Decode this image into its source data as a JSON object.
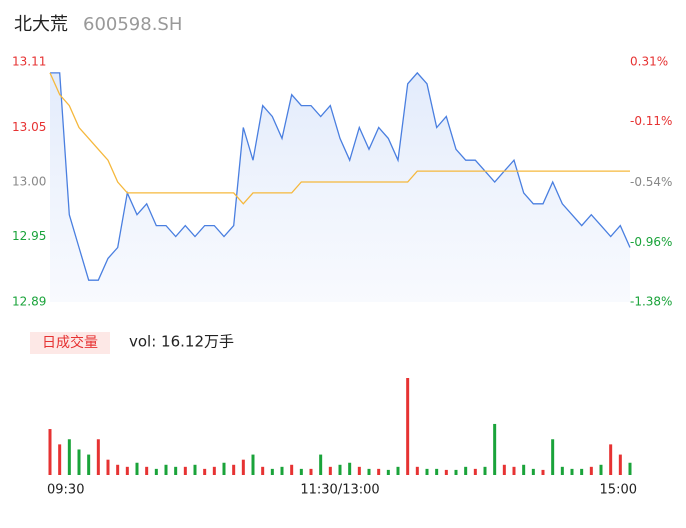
{
  "chart_data": {
    "type": "intraday",
    "title": "北大荒",
    "subtitle": "600598.SH",
    "volume_label": "日成交量",
    "volume_total": "vol: 16.12万手",
    "x": [
      0,
      4,
      8,
      12,
      16,
      20,
      24,
      28,
      32,
      36,
      40,
      44,
      48,
      52,
      56,
      60,
      64,
      68,
      72,
      76,
      80,
      84,
      88,
      92,
      96,
      100,
      104,
      108,
      112,
      116,
      120,
      124,
      128,
      132,
      136,
      140,
      144,
      148,
      152,
      156,
      160,
      164,
      168,
      172,
      176,
      180,
      184,
      188,
      192,
      196,
      200,
      204,
      208,
      212,
      216,
      220,
      224,
      228,
      232,
      236,
      240
    ],
    "xlim": [
      0,
      240
    ],
    "xticks": [
      {
        "value": 0,
        "label": "09:30"
      },
      {
        "value": 120,
        "label": "11:30/13:00"
      },
      {
        "value": 240,
        "label": "15:00"
      }
    ],
    "ylim": [
      12.89,
      13.11
    ],
    "yticks": [
      13.11,
      13.05,
      {
        "value": 13,
        "label": "13.00"
      },
      12.95,
      12.89
    ],
    "ytick_colors": [
      "#e63232",
      "#e63232",
      "#888888",
      "#1aa33a",
      "#1aa33a"
    ],
    "y2lim": [
      -1.38,
      0.31
    ],
    "y2ticks": [
      {
        "value": 0.31,
        "label": "0.31%"
      },
      {
        "value": -0.11,
        "label": "-0.11%"
      },
      {
        "value": -0.54,
        "label": "-0.54%"
      },
      {
        "value": -0.96,
        "label": "-0.96%"
      },
      {
        "value": -1.38,
        "label": "-1.38%"
      }
    ],
    "series": [
      {
        "name": "price",
        "color": "#4a7fe0",
        "values": [
          13.1,
          13.1,
          12.97,
          12.94,
          12.91,
          12.91,
          12.93,
          12.94,
          12.99,
          12.97,
          12.98,
          12.96,
          12.96,
          12.95,
          12.96,
          12.95,
          12.96,
          12.96,
          12.95,
          12.96,
          13.05,
          13.02,
          13.07,
          13.06,
          13.04,
          13.08,
          13.07,
          13.07,
          13.06,
          13.07,
          13.04,
          13.02,
          13.05,
          13.03,
          13.05,
          13.04,
          13.02,
          13.09,
          13.1,
          13.09,
          13.05,
          13.06,
          13.03,
          13.02,
          13.02,
          13.01,
          13.0,
          13.01,
          13.02,
          12.99,
          12.98,
          12.98,
          13.0,
          12.98,
          12.97,
          12.96,
          12.97,
          12.96,
          12.95,
          12.96,
          12.94
        ]
      },
      {
        "name": "average",
        "color": "#f5b83d",
        "values": [
          13.1,
          13.08,
          13.07,
          13.05,
          13.04,
          13.03,
          13.02,
          13.0,
          12.99,
          12.99,
          12.99,
          12.99,
          12.99,
          12.99,
          12.99,
          12.99,
          12.99,
          12.99,
          12.99,
          12.99,
          12.98,
          12.99,
          12.99,
          12.99,
          12.99,
          12.99,
          13.0,
          13.0,
          13.0,
          13.0,
          13.0,
          13.0,
          13.0,
          13.0,
          13.0,
          13.0,
          13.0,
          13.0,
          13.01,
          13.01,
          13.01,
          13.01,
          13.01,
          13.01,
          13.01,
          13.01,
          13.01,
          13.01,
          13.01,
          13.01,
          13.01,
          13.01,
          13.01,
          13.01,
          13.01,
          13.01,
          13.01,
          13.01,
          13.01,
          13.01,
          13.01
        ]
      }
    ],
    "volume": {
      "values": [
        45,
        30,
        35,
        25,
        20,
        35,
        15,
        10,
        8,
        12,
        8,
        6,
        10,
        8,
        8,
        10,
        6,
        8,
        12,
        10,
        15,
        20,
        8,
        6,
        8,
        10,
        6,
        6,
        20,
        8,
        10,
        12,
        8,
        6,
        6,
        5,
        8,
        95,
        8,
        6,
        6,
        5,
        5,
        8,
        6,
        8,
        50,
        10,
        8,
        10,
        6,
        5,
        35,
        8,
        6,
        6,
        8,
        10,
        30,
        20,
        12
      ],
      "colors": [
        "#e63232",
        "#e63232",
        "#1aa33a",
        "#1aa33a",
        "#1aa33a",
        "#e63232",
        "#e63232",
        "#e63232",
        "#e63232",
        "#1aa33a",
        "#e63232",
        "#1aa33a",
        "#1aa33a",
        "#1aa33a",
        "#e63232",
        "#1aa33a",
        "#e63232",
        "#e63232",
        "#1aa33a",
        "#e63232",
        "#e63232",
        "#1aa33a",
        "#e63232",
        "#1aa33a",
        "#1aa33a",
        "#e63232",
        "#1aa33a",
        "#e63232",
        "#1aa33a",
        "#e63232",
        "#1aa33a",
        "#1aa33a",
        "#e63232",
        "#1aa33a",
        "#e63232",
        "#1aa33a",
        "#1aa33a",
        "#e63232",
        "#e63232",
        "#1aa33a",
        "#1aa33a",
        "#e63232",
        "#1aa33a",
        "#1aa33a",
        "#e63232",
        "#1aa33a",
        "#1aa33a",
        "#e63232",
        "#e63232",
        "#1aa33a",
        "#1aa33a",
        "#e63232",
        "#1aa33a",
        "#1aa33a",
        "#1aa33a",
        "#1aa33a",
        "#e63232",
        "#1aa33a",
        "#e63232",
        "#e63232",
        "#1aa33a"
      ]
    }
  }
}
